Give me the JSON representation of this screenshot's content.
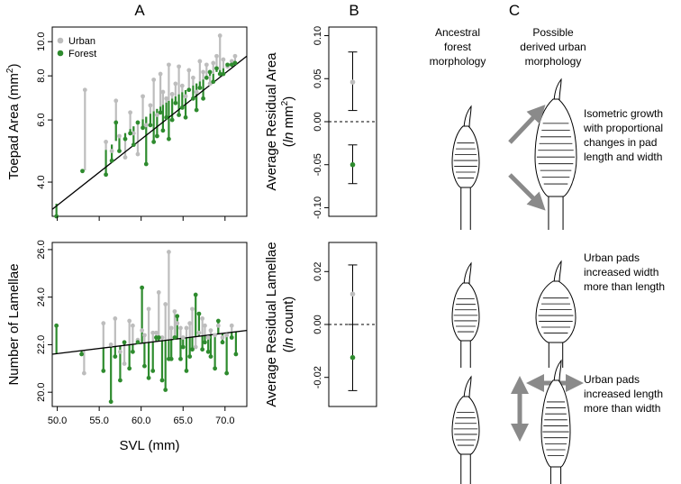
{
  "panels": {
    "a": "A",
    "b": "B",
    "c": "C"
  },
  "colors": {
    "urban": "#bdbdbd",
    "forest": "#2e8b2e",
    "axis": "#000000",
    "arrow": "#8a8a8a"
  },
  "chart_data": [
    {
      "id": "toepad",
      "type": "scatter",
      "title": "",
      "xlabel": "",
      "ylabel": "Toepad Area (mm²)",
      "ylabel_main": "Toepad Area (mm",
      "ylabel_sup": "2",
      "ylabel_close": ")",
      "yscale": "log",
      "xlim": [
        49.4,
        72.6
      ],
      "ylim": [
        3.2,
        11.0
      ],
      "x_ticks": [
        50,
        55,
        60,
        65,
        70
      ],
      "x_tick_labels": [
        "",
        "",
        "",
        "",
        ""
      ],
      "y_ticks": [
        4,
        6,
        8,
        10
      ],
      "y_tick_labels": [
        "4.0",
        "6.0",
        "8.0",
        "10.0"
      ],
      "regression": {
        "x": [
          49.4,
          72.6
        ],
        "y": [
          3.35,
          9.1
        ]
      },
      "legend": {
        "position": "top-left",
        "entries": [
          "Urban",
          "Forest"
        ]
      },
      "series": [
        {
          "name": "Urban",
          "points": [
            [
              53.3,
              7.3
            ],
            [
              55.8,
              5.2
            ],
            [
              56.5,
              4.9
            ],
            [
              57.0,
              6.8
            ],
            [
              57.4,
              5.4
            ],
            [
              58.1,
              4.7
            ],
            [
              58.7,
              6.3
            ],
            [
              59.1,
              5.5
            ],
            [
              59.6,
              4.8
            ],
            [
              60.2,
              7.0
            ],
            [
              60.6,
              5.8
            ],
            [
              61.1,
              6.6
            ],
            [
              61.5,
              7.8
            ],
            [
              61.9,
              6.2
            ],
            [
              62.3,
              8.1
            ],
            [
              62.6,
              7.2
            ],
            [
              63.0,
              6.9
            ],
            [
              63.3,
              8.6
            ],
            [
              63.7,
              7.1
            ],
            [
              64.1,
              7.6
            ],
            [
              64.5,
              8.5
            ],
            [
              64.9,
              7.5
            ],
            [
              65.3,
              7.0
            ],
            [
              65.7,
              8.3
            ],
            [
              66.2,
              7.9
            ],
            [
              66.6,
              7.2
            ],
            [
              67.0,
              8.8
            ],
            [
              67.4,
              8.2
            ],
            [
              67.8,
              8.6
            ],
            [
              68.2,
              7.6
            ],
            [
              68.6,
              8.7
            ],
            [
              69.0,
              9.1
            ],
            [
              69.4,
              10.4
            ],
            [
              69.8,
              8.9
            ],
            [
              70.3,
              8.5
            ],
            [
              70.8,
              8.8
            ],
            [
              71.2,
              9.1
            ]
          ]
        },
        {
          "name": "Forest",
          "points": [
            [
              49.9,
              3.2
            ],
            [
              53.0,
              4.3
            ],
            [
              55.8,
              4.2
            ],
            [
              56.5,
              4.6
            ],
            [
              57.0,
              5.9
            ],
            [
              57.4,
              4.9
            ],
            [
              58.1,
              5.3
            ],
            [
              58.7,
              5.5
            ],
            [
              59.1,
              5.1
            ],
            [
              59.6,
              5.9
            ],
            [
              60.2,
              5.7
            ],
            [
              60.6,
              4.5
            ],
            [
              61.1,
              5.8
            ],
            [
              61.5,
              5.2
            ],
            [
              61.9,
              5.4
            ],
            [
              62.3,
              6.3
            ],
            [
              62.6,
              5.6
            ],
            [
              63.0,
              6.1
            ],
            [
              63.3,
              5.3
            ],
            [
              63.7,
              6.0
            ],
            [
              64.1,
              6.7
            ],
            [
              64.5,
              6.2
            ],
            [
              64.9,
              6.5
            ],
            [
              65.3,
              6.1
            ],
            [
              65.7,
              7.3
            ],
            [
              66.2,
              6.9
            ],
            [
              66.6,
              6.4
            ],
            [
              67.0,
              7.4
            ],
            [
              67.4,
              6.9
            ],
            [
              67.8,
              7.9
            ],
            [
              68.2,
              8.2
            ],
            [
              68.6,
              7.7
            ],
            [
              69.0,
              8.4
            ],
            [
              69.4,
              8.1
            ],
            [
              69.8,
              8.1
            ],
            [
              70.3,
              8.6
            ],
            [
              70.8,
              8.6
            ],
            [
              71.2,
              8.7
            ]
          ]
        }
      ]
    },
    {
      "id": "lamellae",
      "type": "scatter",
      "title": "",
      "xlabel": "SVL (mm)",
      "ylabel": "Number of Lamellae",
      "yscale": "linear",
      "xlim": [
        49.4,
        72.6
      ],
      "ylim": [
        19.4,
        26.3
      ],
      "x_ticks": [
        50,
        55,
        60,
        65,
        70
      ],
      "x_tick_labels": [
        "50.0",
        "55.0",
        "60.0",
        "65.0",
        "70.0"
      ],
      "y_ticks": [
        20,
        22,
        24,
        26
      ],
      "y_tick_labels": [
        "20.0",
        "22.0",
        "24.0",
        "26.0"
      ],
      "regression": {
        "x": [
          49.4,
          72.6
        ],
        "y": [
          21.6,
          22.6
        ]
      },
      "series": [
        {
          "name": "Urban",
          "points": [
            [
              53.2,
              20.8
            ],
            [
              55.5,
              22.9
            ],
            [
              56.4,
              22.0
            ],
            [
              56.9,
              23.1
            ],
            [
              57.5,
              21.7
            ],
            [
              58.0,
              21.2
            ],
            [
              58.6,
              23.0
            ],
            [
              59.0,
              22.8
            ],
            [
              59.6,
              22.2
            ],
            [
              60.1,
              22.6
            ],
            [
              60.4,
              22.4
            ],
            [
              60.9,
              23.5
            ],
            [
              61.4,
              22.5
            ],
            [
              61.8,
              22.5
            ],
            [
              62.1,
              24.2
            ],
            [
              62.5,
              22.3
            ],
            [
              62.9,
              23.7
            ],
            [
              63.3,
              25.9
            ],
            [
              63.6,
              22.7
            ],
            [
              64.0,
              23.4
            ],
            [
              64.3,
              22.9
            ],
            [
              64.7,
              22.7
            ],
            [
              65.0,
              22.3
            ],
            [
              65.4,
              22.7
            ],
            [
              65.8,
              22.9
            ],
            [
              66.1,
              23.5
            ],
            [
              66.5,
              21.9
            ],
            [
              66.9,
              22.5
            ],
            [
              67.3,
              23.1
            ],
            [
              67.6,
              22.8
            ],
            [
              68.0,
              22.3
            ],
            [
              68.3,
              22.6
            ],
            [
              68.8,
              22.4
            ],
            [
              69.2,
              22.8
            ],
            [
              69.7,
              22.3
            ],
            [
              70.2,
              22.4
            ],
            [
              70.8,
              22.8
            ]
          ]
        },
        {
          "name": "Forest",
          "points": [
            [
              49.9,
              22.8
            ],
            [
              52.9,
              21.6
            ],
            [
              55.5,
              20.9
            ],
            [
              56.4,
              19.6
            ],
            [
              56.9,
              21.5
            ],
            [
              57.5,
              20.5
            ],
            [
              58.0,
              22.1
            ],
            [
              58.6,
              21.0
            ],
            [
              59.0,
              21.7
            ],
            [
              59.6,
              22.1
            ],
            [
              60.1,
              24.4
            ],
            [
              60.4,
              21.1
            ],
            [
              60.9,
              20.6
            ],
            [
              61.4,
              20.9
            ],
            [
              61.8,
              22.3
            ],
            [
              62.1,
              22.3
            ],
            [
              62.5,
              20.5
            ],
            [
              62.9,
              20.1
            ],
            [
              63.3,
              21.4
            ],
            [
              63.6,
              21.4
            ],
            [
              64.0,
              22.3
            ],
            [
              64.3,
              23.2
            ],
            [
              64.7,
              21.4
            ],
            [
              65.0,
              21.9
            ],
            [
              65.4,
              20.9
            ],
            [
              65.8,
              21.5
            ],
            [
              66.1,
              21.8
            ],
            [
              66.5,
              24.1
            ],
            [
              66.9,
              23.3
            ],
            [
              67.3,
              21.8
            ],
            [
              67.6,
              22.1
            ],
            [
              68.0,
              21.7
            ],
            [
              68.3,
              21.5
            ],
            [
              68.8,
              21.0
            ],
            [
              69.2,
              23.0
            ],
            [
              69.7,
              22.1
            ],
            [
              70.2,
              20.8
            ],
            [
              70.8,
              22.3
            ],
            [
              71.3,
              21.6
            ]
          ]
        }
      ]
    },
    {
      "id": "residual-area",
      "type": "errorbar",
      "ylabel": "Average Residual Area",
      "ylabel_unit_italic": "ln",
      "ylabel_unit_main": " mm",
      "ylabel_unit_sup": "2",
      "ylim": [
        -0.11,
        0.11
      ],
      "y_ticks": [
        -0.1,
        -0.05,
        0.0,
        0.05,
        0.1
      ],
      "y_tick_labels": [
        "-0.10",
        "-0.05",
        "0.00",
        "0.05",
        "0.10"
      ],
      "zero_line": true,
      "series": [
        {
          "name": "Urban",
          "mean": 0.046,
          "lower": 0.013,
          "upper": 0.081
        },
        {
          "name": "Forest",
          "mean": -0.05,
          "lower": -0.072,
          "upper": -0.027
        }
      ]
    },
    {
      "id": "residual-lamellae",
      "type": "errorbar",
      "ylabel": "Average Residual Lamellae",
      "ylabel_unit_italic": "ln",
      "ylabel_unit_main": " count",
      "ylim": [
        -0.031,
        0.031
      ],
      "y_ticks": [
        -0.02,
        0.0,
        0.02
      ],
      "y_tick_labels": [
        "-0.02",
        "0.00",
        "0.02"
      ],
      "zero_line": true,
      "series": [
        {
          "name": "Urban",
          "mean": 0.0115,
          "lower": 0.0,
          "upper": 0.0225
        },
        {
          "name": "Forest",
          "mean": -0.0125,
          "lower": -0.025,
          "upper": 0.0
        }
      ]
    }
  ],
  "diagram": {
    "col_ancestral": [
      "Ancestral",
      "forest",
      "morphology"
    ],
    "col_derived": [
      "Possible",
      "derived urban",
      "morphology"
    ],
    "rows": [
      {
        "lines": [
          "Isometric growth",
          "with proportional",
          "changes in pad",
          "length and width"
        ]
      },
      {
        "lines": [
          "Urban pads",
          "increased width",
          "more than length"
        ]
      },
      {
        "lines": [
          "Urban pads",
          "increased length",
          "more than width"
        ]
      }
    ]
  }
}
